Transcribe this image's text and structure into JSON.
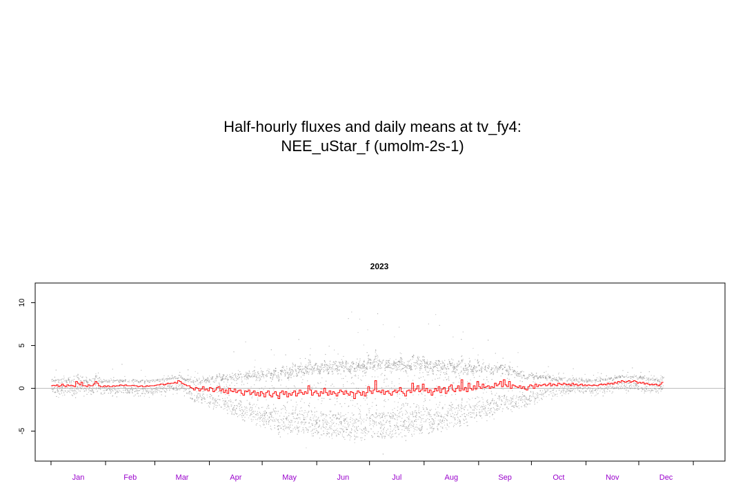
{
  "title_lines": [
    "Half-hourly fluxes and daily means at tv_fy4:",
    "NEE_uStar_f (umolm-2s-1)"
  ],
  "chart_data": {
    "type": "scatter",
    "panel_title": "2023",
    "ylim": [
      -8.5,
      12.3
    ],
    "yticks": [
      -5,
      0,
      5,
      10
    ],
    "ytick_labels": [
      "-5",
      "0",
      "5",
      "10"
    ],
    "xlim_days": [
      -8,
      384
    ],
    "months": [
      "Jan",
      "Feb",
      "Mar",
      "Apr",
      "May",
      "Jun",
      "Jul",
      "Aug",
      "Sep",
      "Oct",
      "Nov",
      "Dec"
    ],
    "month_label_color": "#9900cc",
    "zero_line": true,
    "series": [
      {
        "name": "half-hourly",
        "color": "#808080"
      },
      {
        "name": "daily means",
        "color": "#ff0000"
      }
    ],
    "daily_means": {
      "start_day": 1,
      "values": [
        0.3,
        0.35,
        0.3,
        0.4,
        0.2,
        0.3,
        0.5,
        0.3,
        0.2,
        0.4,
        0.3,
        0.35,
        0.3,
        0.2,
        0.8,
        0.6,
        0.4,
        0.7,
        0.3,
        0.3,
        0.2,
        0.4,
        0.3,
        0.3,
        0.5,
        0.8,
        0.6,
        0.3,
        0.2,
        0.2,
        0.3,
        0.2,
        0.3,
        0.2,
        0.2,
        0.3,
        0.25,
        0.3,
        0.3,
        0.4,
        0.35,
        0.3,
        0.4,
        0.3,
        0.3,
        0.3,
        0.35,
        0.3,
        0.3,
        0.2,
        0.25,
        0.3,
        0.2,
        0.2,
        0.3,
        0.25,
        0.3,
        0.3,
        0.3,
        0.35,
        0.4,
        0.4,
        0.5,
        0.5,
        0.4,
        0.5,
        0.6,
        0.55,
        0.6,
        0.6,
        0.7,
        0.6,
        0.9,
        0.8,
        0.6,
        0.5,
        0.4,
        0.3,
        0.3,
        0.1,
        0.0,
        -0.2,
        0.1,
        0.0,
        -0.3,
        -0.1,
        0.2,
        -0.2,
        -0.1,
        -0.3,
        0.1,
        0.0,
        -0.4,
        -0.2,
        0.1,
        0.2,
        -0.3,
        -0.1,
        -0.5,
        -0.2,
        -0.6,
        0.0,
        -0.3,
        -0.4,
        -0.1,
        -0.5,
        -0.3,
        -0.2,
        -0.6,
        -0.8,
        -0.3,
        -0.4,
        -0.2,
        -0.7,
        -0.5,
        -0.3,
        -0.8,
        -0.5,
        -0.9,
        -0.4,
        -0.6,
        -1.0,
        -0.5,
        -0.3,
        -0.8,
        -1.0,
        -0.6,
        -0.4,
        -0.8,
        -1.2,
        -0.5,
        -0.3,
        -0.7,
        -0.4,
        -1.0,
        -0.6,
        -0.8,
        -0.5,
        -0.3,
        -0.9,
        -0.6,
        -0.2,
        -0.5,
        -0.7,
        -0.4,
        -0.6,
        0.3,
        -0.2,
        -0.8,
        -0.5,
        -0.3,
        -0.6,
        -0.9,
        -0.4,
        -0.6,
        0.0,
        -0.5,
        -0.8,
        -0.3,
        -0.7,
        -0.4,
        -0.6,
        -0.9,
        -0.5,
        -0.2,
        -0.4,
        -0.7,
        -0.3,
        -0.6,
        -0.8,
        -0.4,
        -0.5,
        -1.2,
        -0.6,
        -0.3,
        -0.5,
        -0.8,
        -0.4,
        -0.9,
        -0.5,
        0.2,
        -0.3,
        -0.6,
        -0.2,
        0.9,
        -0.4,
        -0.3,
        -0.5,
        -0.2,
        -0.7,
        -0.4,
        -0.3,
        -0.6,
        -0.8,
        -0.4,
        -0.2,
        -0.5,
        -0.3,
        0.1,
        -0.4,
        -0.6,
        -0.9,
        -0.3,
        -0.2,
        -0.5,
        0.6,
        -0.3,
        -0.1,
        0.3,
        -0.4,
        -0.2,
        0.5,
        -0.3,
        0.0,
        -0.5,
        -0.2,
        -0.8,
        -0.4,
        0.0,
        -0.3,
        0.2,
        -0.5,
        -0.1,
        0.1,
        -0.6,
        -0.3,
        0.2,
        0.4,
        -0.2,
        -0.4,
        0.0,
        0.3,
        -0.3,
        1.0,
        -0.2,
        0.1,
        -0.4,
        0.6,
        0.0,
        -0.2,
        0.3,
        -0.1,
        0.8,
        0.2,
        0.0,
        0.5,
        0.1,
        0.2,
        0.3,
        0.0,
        0.2,
        0.1,
        0.6,
        0.3,
        0.5,
        0.8,
        0.2,
        1.0,
        0.4,
        0.2,
        0.8,
        0.0,
        0.4,
        0.3,
        0.2,
        0.1,
        0.3,
        0.0,
        0.2,
        -0.1,
        -0.2,
        0.2,
        0.4,
        0.3,
        0.0,
        0.5,
        0.2,
        0.4,
        0.3,
        0.4,
        0.5,
        0.3,
        0.4,
        0.6,
        0.3,
        0.5,
        0.4,
        0.3,
        0.6,
        0.5,
        0.4,
        0.6,
        0.5,
        0.4,
        0.5,
        0.3,
        0.6,
        0.4,
        0.5,
        0.3,
        0.4,
        0.5,
        0.3,
        0.4,
        0.3,
        0.4,
        0.35,
        0.3,
        0.4,
        0.35,
        0.3,
        0.4,
        0.5,
        0.4,
        0.5,
        0.4,
        0.6,
        0.5,
        0.6,
        0.5,
        0.7,
        0.6,
        0.8,
        0.7,
        0.9,
        0.8,
        0.7,
        0.8,
        0.9,
        0.7,
        0.8,
        0.9,
        0.8,
        0.6,
        0.7,
        0.6,
        0.7,
        0.5,
        0.6,
        0.5,
        0.4,
        0.5,
        0.4,
        0.5,
        0.4,
        0.3,
        0.5,
        0.7
      ]
    }
  }
}
